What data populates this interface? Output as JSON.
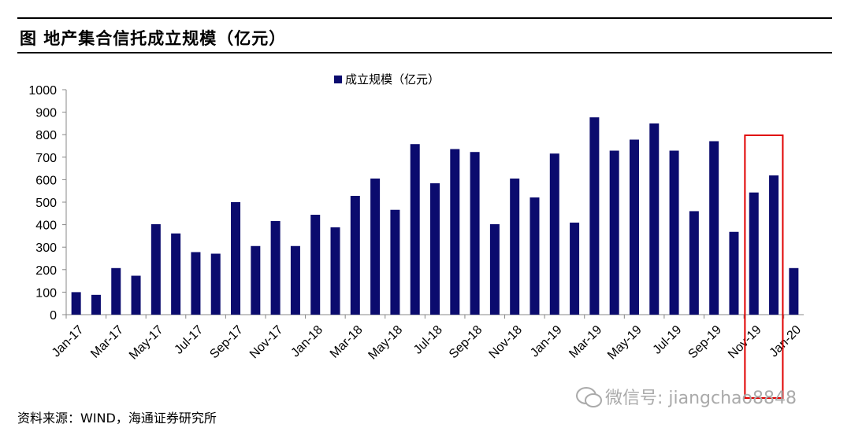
{
  "title": "图  地产集合信托成立规模（亿元）",
  "footer": "资料来源：WIND，海通证券研究所",
  "watermark": "微信号: jiangchao8848",
  "colors": {
    "bar": "#0b0b6e",
    "highlight": "#e00000",
    "axis": "#888888"
  },
  "chart_data": {
    "type": "bar",
    "title": "",
    "legend": "成立规模（亿元）",
    "legend_position": "top-center",
    "ylim": [
      0,
      1000
    ],
    "yticks": [
      0,
      100,
      200,
      300,
      400,
      500,
      600,
      700,
      800,
      900,
      1000
    ],
    "categories": [
      "Jan-17",
      "Feb-17",
      "Mar-17",
      "Apr-17",
      "May-17",
      "Jun-17",
      "Jul-17",
      "Aug-17",
      "Sep-17",
      "Oct-17",
      "Nov-17",
      "Dec-17",
      "Jan-18",
      "Feb-18",
      "Mar-18",
      "Apr-18",
      "May-18",
      "Jun-18",
      "Jul-18",
      "Aug-18",
      "Sep-18",
      "Oct-18",
      "Nov-18",
      "Dec-18",
      "Jan-19",
      "Feb-19",
      "Mar-19",
      "Apr-19",
      "May-19",
      "Jun-19",
      "Jul-19",
      "Aug-19",
      "Sep-19",
      "Oct-19",
      "Nov-19",
      "Dec-19",
      "Jan-20"
    ],
    "xticklabels": [
      "Jan-17",
      "Mar-17",
      "May-17",
      "Jul-17",
      "Sep-17",
      "Nov-17",
      "Jan-18",
      "Mar-18",
      "May-18",
      "Jul-18",
      "Sep-18",
      "Nov-18",
      "Jan-19",
      "Mar-19",
      "May-19",
      "Jul-19",
      "Sep-19",
      "Nov-19",
      "Jan-20"
    ],
    "values": [
      100,
      88,
      207,
      173,
      402,
      361,
      278,
      271,
      500,
      305,
      416,
      305,
      444,
      388,
      528,
      605,
      466,
      758,
      584,
      736,
      723,
      402,
      605,
      521,
      716,
      409,
      877,
      729,
      778,
      850,
      729,
      460,
      771,
      368,
      543,
      619,
      207
    ],
    "highlight_categories": [
      "Nov-19",
      "Dec-19"
    ],
    "grid": false
  }
}
